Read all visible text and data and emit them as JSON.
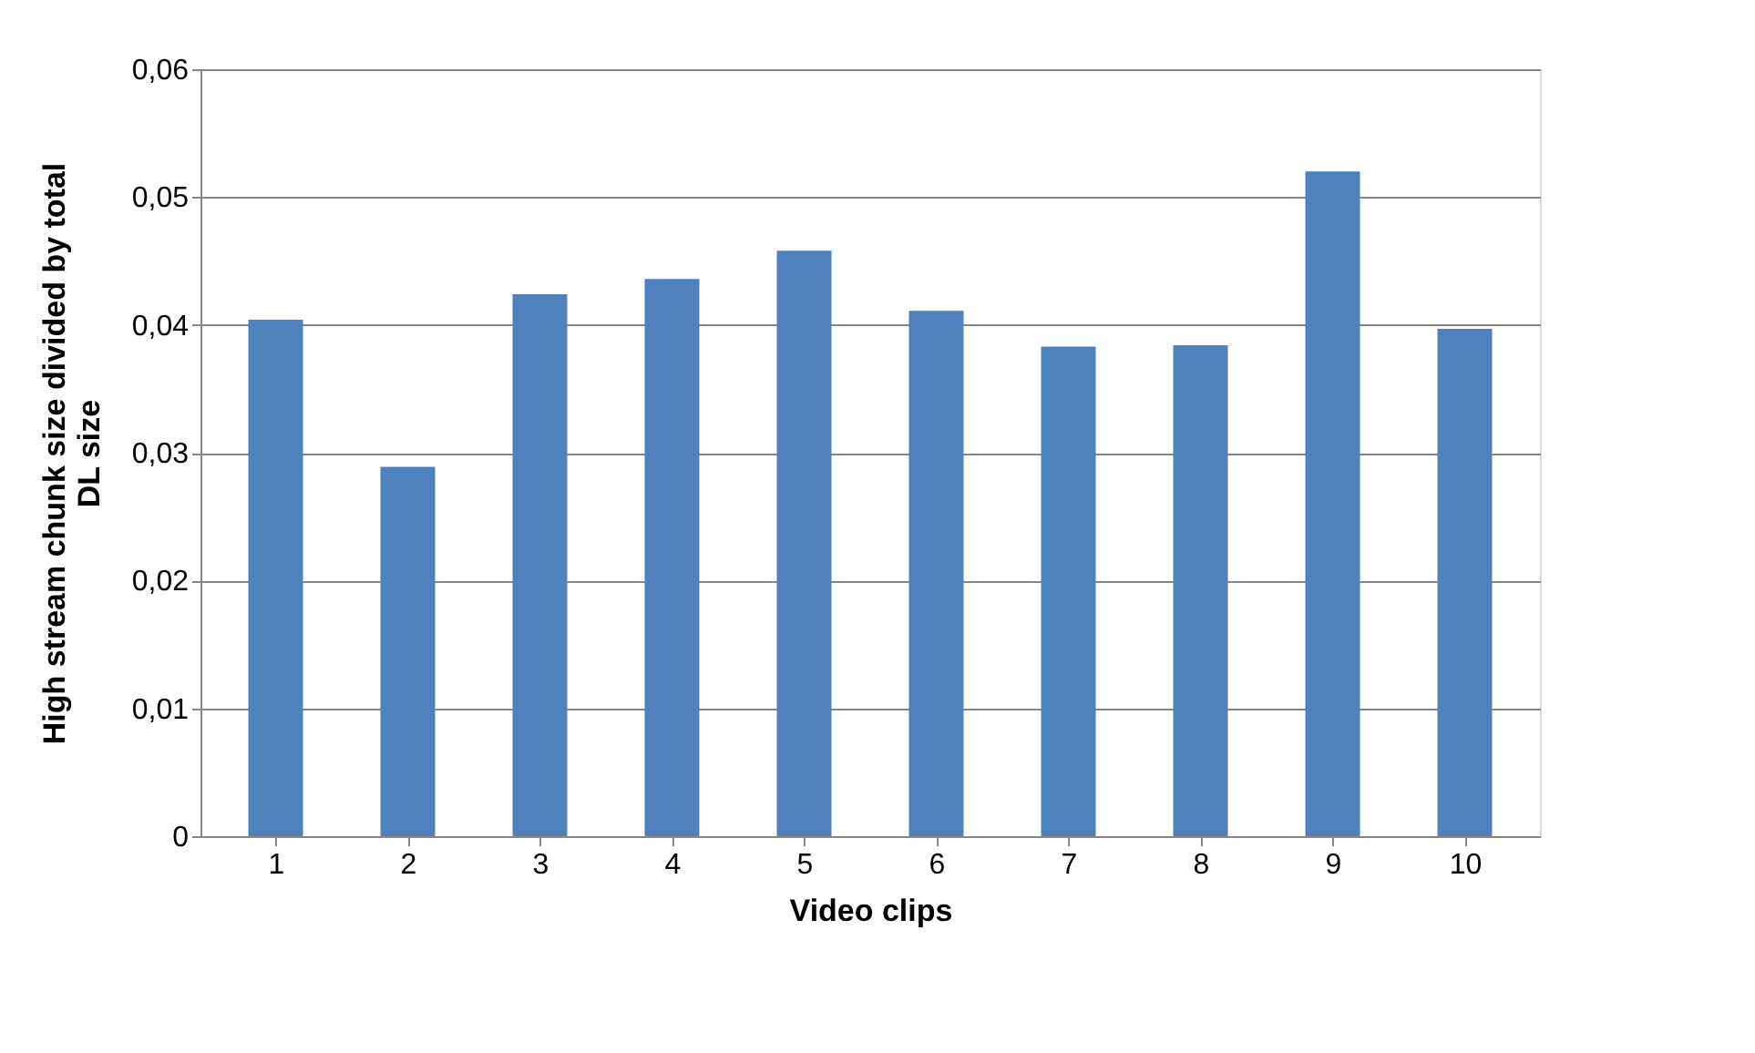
{
  "chart_data": {
    "type": "bar",
    "xlabel": "Video clips",
    "ylabel": "High stream chunk size divided by total DL size",
    "categories": [
      "1",
      "2",
      "3",
      "4",
      "5",
      "6",
      "7",
      "8",
      "9",
      "10"
    ],
    "values": [
      0.0404,
      0.0289,
      0.0424,
      0.0436,
      0.0458,
      0.0411,
      0.0383,
      0.0384,
      0.052,
      0.0397
    ],
    "color": "#4f81bd",
    "ylim": [
      0,
      0.06
    ],
    "yticks": [
      0,
      {
        "value": 0.01,
        "label": "0,01"
      },
      {
        "value": 0.02,
        "label": "0,02"
      },
      {
        "value": 0.03,
        "label": "0,03"
      },
      {
        "value": 0.04,
        "label": "0,04"
      },
      {
        "value": 0.05,
        "label": "0,05"
      },
      {
        "value": 0.06,
        "label": "0,06"
      }
    ],
    "grid": "y"
  }
}
